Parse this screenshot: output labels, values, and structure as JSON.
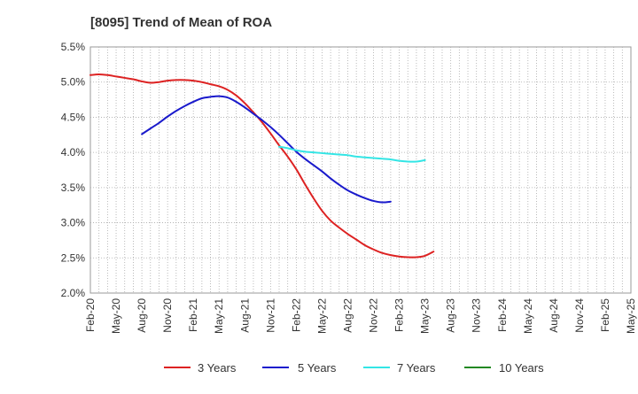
{
  "chart_data": {
    "type": "line",
    "title": "[8095]  Trend of Mean of ROA",
    "xlabel": "",
    "ylabel": "",
    "ylim": [
      2.0,
      5.5
    ],
    "yticks": [
      "2.0%",
      "2.5%",
      "3.0%",
      "3.5%",
      "4.0%",
      "4.5%",
      "5.0%",
      "5.5%"
    ],
    "ytick_values": [
      2.0,
      2.5,
      3.0,
      3.5,
      4.0,
      4.5,
      5.0,
      5.5
    ],
    "xticks": [
      "Feb-20",
      "May-20",
      "Aug-20",
      "Nov-20",
      "Feb-21",
      "May-21",
      "Aug-21",
      "Nov-21",
      "Feb-22",
      "May-22",
      "Aug-22",
      "Nov-22",
      "Feb-23",
      "May-23",
      "Aug-23",
      "Nov-23",
      "Feb-24",
      "May-24",
      "Aug-24",
      "Nov-24",
      "Feb-25",
      "May-25"
    ],
    "grid": true,
    "legend_position": "bottom",
    "series": [
      {
        "name": "3 Years",
        "color": "#dd2222",
        "start_index": 0,
        "values": [
          5.1,
          5.11,
          5.1,
          5.08,
          5.06,
          5.04,
          5.01,
          4.99,
          5.0,
          5.02,
          5.03,
          5.03,
          5.02,
          5.0,
          4.97,
          4.94,
          4.89,
          4.81,
          4.7,
          4.57,
          4.43,
          4.27,
          4.1,
          3.94,
          3.76,
          3.55,
          3.35,
          3.17,
          3.03,
          2.93,
          2.84,
          2.76,
          2.68,
          2.62,
          2.57,
          2.54,
          2.52,
          2.51,
          2.51,
          2.53,
          2.59
        ]
      },
      {
        "name": "5 Years",
        "color": "#1a1acc",
        "start_index": 6,
        "values": [
          4.26,
          4.34,
          4.42,
          4.51,
          4.59,
          4.66,
          4.72,
          4.77,
          4.79,
          4.8,
          4.78,
          4.72,
          4.64,
          4.55,
          4.46,
          4.36,
          4.25,
          4.13,
          4.01,
          3.91,
          3.82,
          3.73,
          3.63,
          3.54,
          3.46,
          3.4,
          3.35,
          3.31,
          3.29,
          3.3
        ]
      },
      {
        "name": "7 Years",
        "color": "#33e5e5",
        "start_index": 22,
        "values": [
          4.08,
          4.06,
          4.03,
          4.01,
          4.0,
          3.99,
          3.98,
          3.97,
          3.96,
          3.94,
          3.93,
          3.92,
          3.91,
          3.9,
          3.88,
          3.87,
          3.87,
          3.89
        ]
      },
      {
        "name": "10 Years",
        "color": "#228822",
        "start_index": 0,
        "values": []
      }
    ]
  }
}
